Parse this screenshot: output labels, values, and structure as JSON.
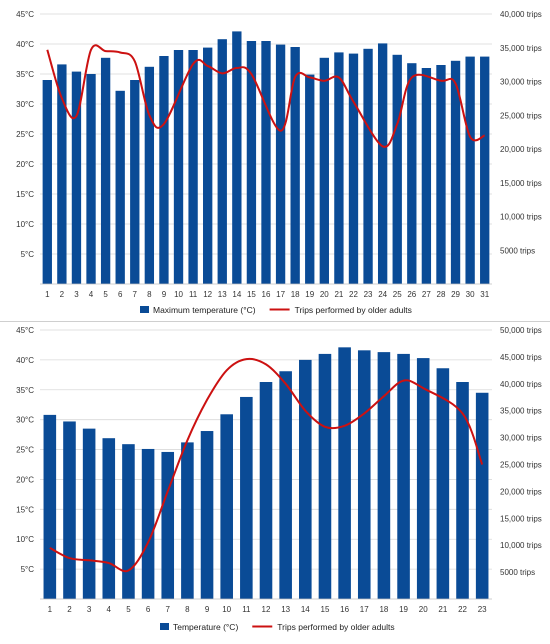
{
  "colors": {
    "bar": "#0a4b96",
    "line": "#cc1111",
    "grid": "#d9d9d9",
    "separator": "#cfcfcf"
  },
  "chart_data": [
    {
      "type": "bar",
      "x": [
        "1",
        "2",
        "3",
        "4",
        "5",
        "6",
        "7",
        "8",
        "9",
        "10",
        "11",
        "12",
        "13",
        "14",
        "15",
        "16",
        "17",
        "18",
        "19",
        "20",
        "21",
        "22",
        "23",
        "24",
        "25",
        "26",
        "27",
        "28",
        "29",
        "30",
        "31"
      ],
      "ylim_left": [
        0,
        45
      ],
      "ylim_right": [
        0,
        40000
      ],
      "left_tick_labels": [
        "5°C",
        "10°C",
        "15°C",
        "20°C",
        "25°C",
        "30°C",
        "35°C",
        "40°C",
        "45°C"
      ],
      "right_tick_labels": [
        "5000 trips",
        "10,000 trips",
        "15,000 trips",
        "20,000 trips",
        "25,000 trips",
        "30,000 trips",
        "35,000 trips",
        "40,000 trips"
      ],
      "grid": true,
      "legend_position": "bottom",
      "series": [
        {
          "name": "Maximum temperature (°C)",
          "type": "bar",
          "axis": "left",
          "values": [
            34,
            36.6,
            35.4,
            35,
            37.7,
            32.2,
            34,
            36.2,
            38,
            39,
            39,
            39.4,
            40.8,
            42.1,
            40.5,
            40.5,
            39.9,
            39.5,
            34.9,
            37.7,
            38.6,
            38.4,
            39.2,
            40.1,
            38.2,
            36.8,
            36,
            36.5,
            37.2,
            37.9,
            37.9
          ]
        },
        {
          "name": "Trips performed by older adults",
          "type": "line",
          "axis": "right",
          "values": [
            34700,
            27500,
            24900,
            34700,
            34500,
            34300,
            33000,
            25000,
            23700,
            32600,
            32300,
            31200,
            32000,
            31100,
            22700,
            30700,
            30600,
            30100,
            30600,
            27000,
            20400,
            23700,
            30600,
            30100,
            29700,
            21800,
            22000
          ],
          "x": [
            1,
            2,
            3,
            4,
            5,
            6,
            7,
            8,
            9,
            11,
            12,
            13,
            14,
            15,
            17,
            18,
            19,
            20,
            21,
            22,
            24,
            25,
            26,
            28,
            29,
            30,
            31
          ]
        }
      ]
    },
    {
      "type": "bar",
      "x": [
        "1",
        "2",
        "3",
        "4",
        "5",
        "6",
        "7",
        "8",
        "9",
        "10",
        "11",
        "12",
        "13",
        "14",
        "15",
        "16",
        "17",
        "18",
        "19",
        "20",
        "21",
        "22",
        "23"
      ],
      "ylim_left": [
        0,
        45
      ],
      "ylim_right": [
        0,
        50000
      ],
      "left_tick_labels": [
        "5°C",
        "10°C",
        "15°C",
        "20°C",
        "25°C",
        "30°C",
        "35°C",
        "40°C",
        "45°C"
      ],
      "right_tick_labels": [
        "5000 trips",
        "10,000 trips",
        "15,000 trips",
        "20,000 trips",
        "25,000 trips",
        "30,000 trips",
        "35,000 trips",
        "40,000 trips",
        "45,000 trips",
        "50,000 trips"
      ],
      "grid": true,
      "legend_position": "bottom",
      "series": [
        {
          "name": "Temperature (°C)",
          "type": "bar",
          "axis": "left",
          "values": [
            30.8,
            29.7,
            28.5,
            26.9,
            25.9,
            25.1,
            24.6,
            26.2,
            28.1,
            30.9,
            33.8,
            36.3,
            38.1,
            40,
            41,
            42.1,
            41.6,
            41.3,
            41,
            40.3,
            38.6,
            36.3,
            34.5
          ]
        },
        {
          "name": "Trips performed by older adults",
          "type": "line",
          "axis": "right",
          "values": [
            9500,
            7600,
            7200,
            6700,
            5300,
            10500,
            20000,
            29500,
            37000,
            42500,
            44600,
            43600,
            40000,
            35000,
            32000,
            32200,
            34500,
            37700,
            40600,
            39200,
            34500,
            25000
          ],
          "x": [
            1,
            2,
            3,
            4,
            5,
            6,
            7,
            8,
            9,
            10,
            11,
            12,
            13,
            14,
            15,
            16,
            17,
            18,
            19,
            20,
            22,
            23
          ]
        }
      ]
    }
  ]
}
